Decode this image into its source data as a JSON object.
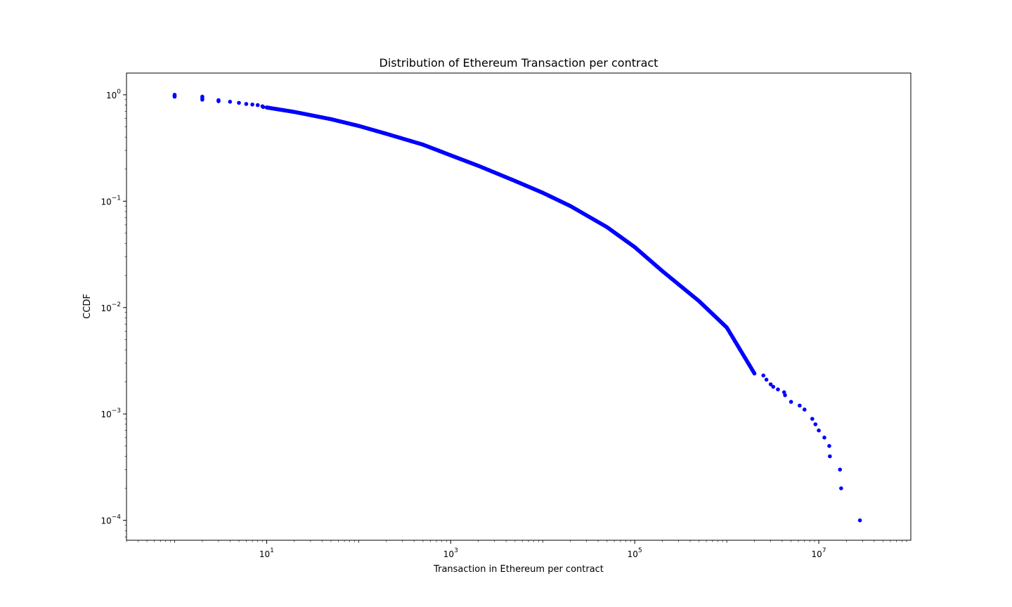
{
  "chart_data": {
    "type": "scatter",
    "title": "Distribution of Ethereum Transaction per contract",
    "xlabel": "Transaction in Ethereum per contract",
    "ylabel": "CCDF",
    "xscale": "log",
    "yscale": "log",
    "xlim": [
      0.3,
      100000000
    ],
    "ylim": [
      6.5e-05,
      1.6
    ],
    "grid": false,
    "marker_color": "#0000ff",
    "x_ticks": [
      {
        "base": "10",
        "exp": "1",
        "value": 10
      },
      {
        "base": "10",
        "exp": "3",
        "value": 1000
      },
      {
        "base": "10",
        "exp": "5",
        "value": 100000
      },
      {
        "base": "10",
        "exp": "7",
        "value": 10000000
      }
    ],
    "y_ticks": [
      {
        "base": "10",
        "exp": "0",
        "value": 1
      },
      {
        "base": "10",
        "exp": "−1",
        "value": 0.1
      },
      {
        "base": "10",
        "exp": "−2",
        "value": 0.01
      },
      {
        "base": "10",
        "exp": "−3",
        "value": 0.001
      },
      {
        "base": "10",
        "exp": "−4",
        "value": 0.0001
      }
    ],
    "curve": {
      "description_points": [
        [
          1,
          0.97
        ],
        [
          2,
          0.92
        ],
        [
          5,
          0.83
        ],
        [
          10,
          0.76
        ],
        [
          20,
          0.69
        ],
        [
          50,
          0.59
        ],
        [
          100,
          0.51
        ],
        [
          200,
          0.43
        ],
        [
          500,
          0.34
        ],
        [
          1000,
          0.27
        ],
        [
          2000,
          0.215
        ],
        [
          5000,
          0.155
        ],
        [
          10000,
          0.12
        ],
        [
          20000,
          0.09
        ],
        [
          50000,
          0.057
        ],
        [
          100000,
          0.037
        ],
        [
          200000,
          0.022
        ],
        [
          500000,
          0.0115
        ],
        [
          1000000,
          0.0065
        ],
        [
          2000000,
          0.0024
        ]
      ]
    },
    "sparse_points": [
      [
        2500000,
        0.0023
      ],
      [
        2700000,
        0.0021
      ],
      [
        3000000,
        0.0019
      ],
      [
        3200000,
        0.0018
      ],
      [
        3600000,
        0.0017
      ],
      [
        4200000,
        0.0016
      ],
      [
        4300000,
        0.0015
      ],
      [
        5000000,
        0.0013
      ],
      [
        6200000,
        0.0012
      ],
      [
        7000000,
        0.0011
      ],
      [
        8500000,
        0.0009
      ],
      [
        9200000,
        0.0008
      ],
      [
        10000000,
        0.0007
      ],
      [
        11500000,
        0.0006
      ],
      [
        13000000,
        0.0005
      ],
      [
        13200000,
        0.0004
      ],
      [
        17000000,
        0.0003
      ],
      [
        17500000,
        0.0002
      ],
      [
        28000000,
        0.0001
      ]
    ],
    "head_points": [
      [
        1,
        0.96
      ],
      [
        1,
        0.98
      ],
      [
        1,
        1.0
      ],
      [
        2,
        0.9
      ],
      [
        2,
        0.93
      ],
      [
        2,
        0.96
      ],
      [
        3,
        0.87
      ],
      [
        3,
        0.89
      ],
      [
        4,
        0.86
      ],
      [
        5,
        0.84
      ],
      [
        6,
        0.82
      ],
      [
        7,
        0.81
      ],
      [
        8,
        0.8
      ],
      [
        9,
        0.78
      ]
    ]
  }
}
